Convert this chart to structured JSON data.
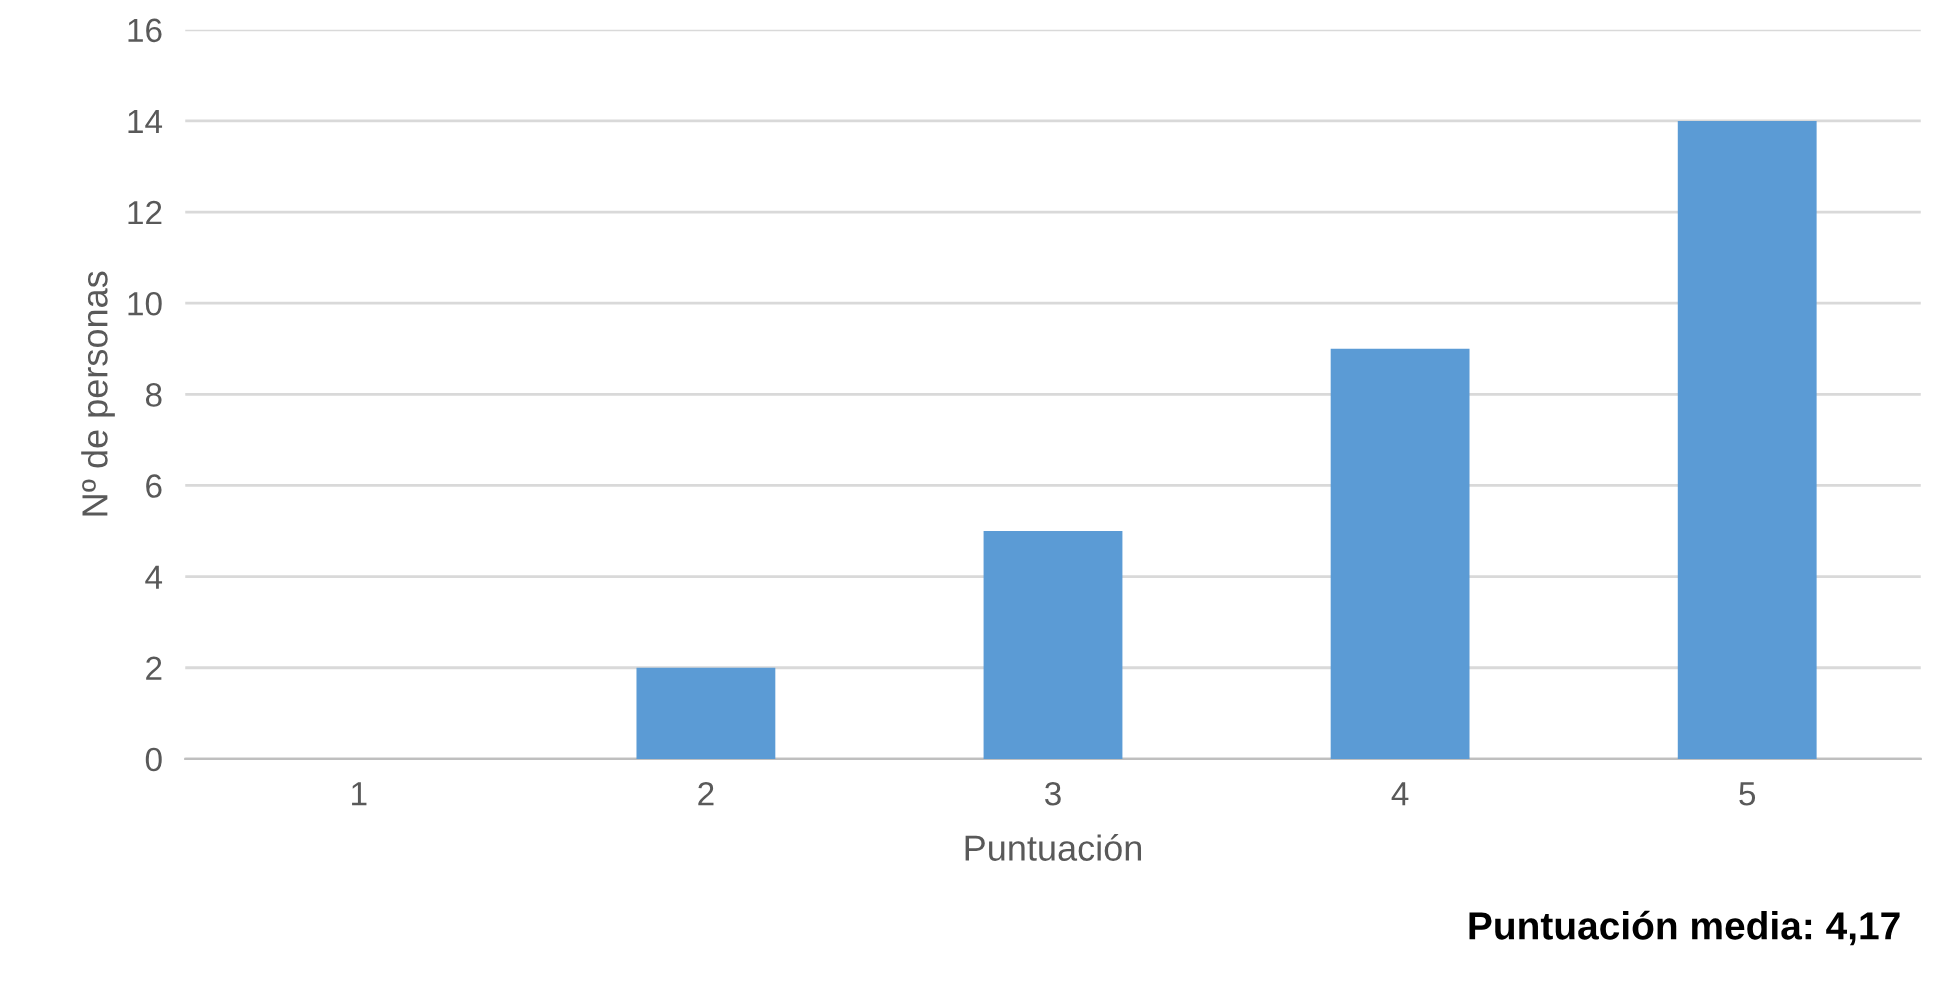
{
  "chart_data": {
    "type": "bar",
    "xlabel": "Puntuación",
    "ylabel": "Nº de personas",
    "categories": [
      "1",
      "2",
      "3",
      "4",
      "5"
    ],
    "values": [
      0,
      2,
      5,
      9,
      14
    ],
    "color": "#5b9bd5",
    "ylim": [
      0,
      16
    ],
    "yticks": [
      0,
      2,
      4,
      6,
      8,
      10,
      12,
      14,
      16
    ],
    "grid": "y",
    "annotations": [
      "Puntuación media: 4,17"
    ]
  }
}
